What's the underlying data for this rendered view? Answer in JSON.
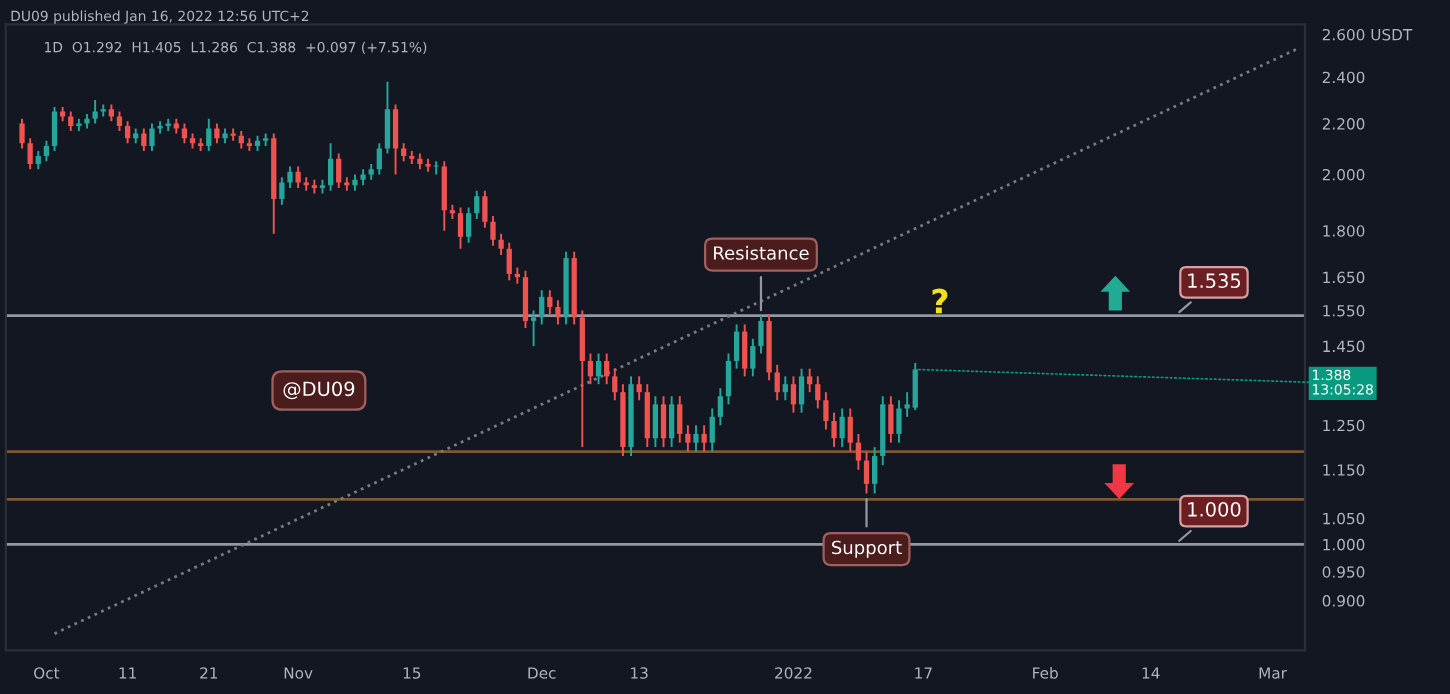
{
  "chart_data": {
    "type": "candlestick",
    "x": [
      "2021-09-28",
      "2021-09-29",
      "2021-09-30",
      "2021-10-01",
      "2021-10-02",
      "2021-10-03",
      "2021-10-04",
      "2021-10-05",
      "2021-10-06",
      "2021-10-07",
      "2021-10-08",
      "2021-10-09",
      "2021-10-10",
      "2021-10-11",
      "2021-10-12",
      "2021-10-13",
      "2021-10-14",
      "2021-10-15",
      "2021-10-16",
      "2021-10-17",
      "2021-10-18",
      "2021-10-19",
      "2021-10-20",
      "2021-10-21",
      "2021-10-22",
      "2021-10-23",
      "2021-10-24",
      "2021-10-25",
      "2021-10-26",
      "2021-10-27",
      "2021-10-28",
      "2021-10-29",
      "2021-10-30",
      "2021-10-31",
      "2021-11-01",
      "2021-11-02",
      "2021-11-03",
      "2021-11-04",
      "2021-11-05",
      "2021-11-06",
      "2021-11-07",
      "2021-11-08",
      "2021-11-09",
      "2021-11-10",
      "2021-11-11",
      "2021-11-12",
      "2021-11-13",
      "2021-11-14",
      "2021-11-15",
      "2021-11-16",
      "2021-11-17",
      "2021-11-18",
      "2021-11-19",
      "2021-11-20",
      "2021-11-21",
      "2021-11-22",
      "2021-11-23",
      "2021-11-24",
      "2021-11-25",
      "2021-11-26",
      "2021-11-27",
      "2021-11-28",
      "2021-11-29",
      "2021-11-30",
      "2021-12-01",
      "2021-12-02",
      "2021-12-03",
      "2021-12-04",
      "2021-12-05",
      "2021-12-06",
      "2021-12-07",
      "2021-12-08",
      "2021-12-09",
      "2021-12-10",
      "2021-12-11",
      "2021-12-12",
      "2021-12-13",
      "2021-12-14",
      "2021-12-15",
      "2021-12-16",
      "2021-12-17",
      "2021-12-18",
      "2021-12-19",
      "2021-12-20",
      "2021-12-21",
      "2021-12-22",
      "2021-12-23",
      "2021-12-24",
      "2021-12-25",
      "2021-12-26",
      "2021-12-27",
      "2021-12-28",
      "2021-12-29",
      "2021-12-30",
      "2021-12-31",
      "2022-01-01",
      "2022-01-02",
      "2022-01-03",
      "2022-01-04",
      "2022-01-05",
      "2022-01-06",
      "2022-01-07",
      "2022-01-08",
      "2022-01-09",
      "2022-01-10",
      "2022-01-11",
      "2022-01-12",
      "2022-01-13",
      "2022-01-14",
      "2022-01-15",
      "2022-01-16"
    ],
    "ohlc": [
      [
        2.2,
        2.22,
        2.1,
        2.12
      ],
      [
        2.12,
        2.14,
        2.02,
        2.04
      ],
      [
        2.04,
        2.09,
        2.02,
        2.07
      ],
      [
        2.07,
        2.13,
        2.05,
        2.11
      ],
      [
        2.11,
        2.27,
        2.09,
        2.25
      ],
      [
        2.25,
        2.27,
        2.21,
        2.23
      ],
      [
        2.23,
        2.25,
        2.17,
        2.19
      ],
      [
        2.19,
        2.22,
        2.17,
        2.2
      ],
      [
        2.2,
        2.24,
        2.18,
        2.22
      ],
      [
        2.22,
        2.3,
        2.2,
        2.25
      ],
      [
        2.25,
        2.28,
        2.23,
        2.26
      ],
      [
        2.26,
        2.28,
        2.21,
        2.23
      ],
      [
        2.23,
        2.25,
        2.17,
        2.19
      ],
      [
        2.19,
        2.21,
        2.12,
        2.14
      ],
      [
        2.14,
        2.18,
        2.12,
        2.16
      ],
      [
        2.16,
        2.18,
        2.09,
        2.11
      ],
      [
        2.11,
        2.2,
        2.09,
        2.18
      ],
      [
        2.18,
        2.21,
        2.16,
        2.19
      ],
      [
        2.19,
        2.22,
        2.17,
        2.2
      ],
      [
        2.2,
        2.22,
        2.16,
        2.18
      ],
      [
        2.18,
        2.2,
        2.12,
        2.14
      ],
      [
        2.14,
        2.16,
        2.1,
        2.12
      ],
      [
        2.12,
        2.14,
        2.09,
        2.11
      ],
      [
        2.11,
        2.22,
        2.09,
        2.18
      ],
      [
        2.18,
        2.2,
        2.12,
        2.14
      ],
      [
        2.14,
        2.18,
        2.12,
        2.16
      ],
      [
        2.16,
        2.18,
        2.13,
        2.15
      ],
      [
        2.15,
        2.17,
        2.1,
        2.12
      ],
      [
        2.12,
        2.14,
        2.09,
        2.11
      ],
      [
        2.11,
        2.15,
        2.09,
        2.13
      ],
      [
        2.13,
        2.16,
        2.11,
        2.14
      ],
      [
        2.14,
        2.16,
        1.79,
        1.91
      ],
      [
        1.91,
        1.99,
        1.89,
        1.97
      ],
      [
        1.97,
        2.03,
        1.95,
        2.01
      ],
      [
        2.01,
        2.03,
        1.95,
        1.97
      ],
      [
        1.97,
        1.99,
        1.94,
        1.96
      ],
      [
        1.96,
        1.98,
        1.93,
        1.95
      ],
      [
        1.95,
        1.98,
        1.93,
        1.96
      ],
      [
        1.96,
        2.12,
        1.94,
        2.06
      ],
      [
        2.06,
        2.08,
        1.95,
        1.97
      ],
      [
        1.97,
        1.99,
        1.94,
        1.96
      ],
      [
        1.96,
        2.0,
        1.94,
        1.98
      ],
      [
        1.98,
        2.02,
        1.96,
        2.0
      ],
      [
        2.0,
        2.04,
        1.98,
        2.02
      ],
      [
        2.02,
        2.12,
        2.0,
        2.1
      ],
      [
        2.1,
        2.38,
        2.08,
        2.26
      ],
      [
        2.26,
        2.28,
        2.0,
        2.1
      ],
      [
        2.1,
        2.12,
        2.05,
        2.07
      ],
      [
        2.07,
        2.09,
        2.04,
        2.06
      ],
      [
        2.06,
        2.08,
        2.02,
        2.04
      ],
      [
        2.04,
        2.06,
        2.01,
        2.03
      ],
      [
        2.03,
        2.05,
        2.0,
        2.03
      ],
      [
        2.03,
        2.05,
        1.8,
        1.87
      ],
      [
        1.87,
        1.89,
        1.84,
        1.86
      ],
      [
        1.86,
        1.88,
        1.74,
        1.78
      ],
      [
        1.78,
        1.88,
        1.76,
        1.86
      ],
      [
        1.86,
        1.94,
        1.84,
        1.92
      ],
      [
        1.92,
        1.94,
        1.81,
        1.83
      ],
      [
        1.83,
        1.85,
        1.75,
        1.77
      ],
      [
        1.77,
        1.79,
        1.72,
        1.74
      ],
      [
        1.74,
        1.76,
        1.64,
        1.66
      ],
      [
        1.66,
        1.68,
        1.63,
        1.65
      ],
      [
        1.65,
        1.67,
        1.5,
        1.52
      ],
      [
        1.52,
        1.55,
        1.45,
        1.53
      ],
      [
        1.53,
        1.61,
        1.51,
        1.59
      ],
      [
        1.59,
        1.61,
        1.54,
        1.56
      ],
      [
        1.56,
        1.58,
        1.51,
        1.53
      ],
      [
        1.53,
        1.73,
        1.51,
        1.71
      ],
      [
        1.71,
        1.73,
        1.51,
        1.53
      ],
      [
        1.53,
        1.55,
        1.2,
        1.41
      ],
      [
        1.41,
        1.43,
        1.35,
        1.37
      ],
      [
        1.37,
        1.43,
        1.35,
        1.41
      ],
      [
        1.41,
        1.43,
        1.35,
        1.37
      ],
      [
        1.37,
        1.39,
        1.31,
        1.33
      ],
      [
        1.33,
        1.35,
        1.18,
        1.2
      ],
      [
        1.2,
        1.37,
        1.18,
        1.35
      ],
      [
        1.35,
        1.37,
        1.31,
        1.33
      ],
      [
        1.33,
        1.35,
        1.2,
        1.22
      ],
      [
        1.22,
        1.32,
        1.2,
        1.3
      ],
      [
        1.3,
        1.32,
        1.2,
        1.22
      ],
      [
        1.22,
        1.32,
        1.2,
        1.3
      ],
      [
        1.3,
        1.32,
        1.21,
        1.23
      ],
      [
        1.23,
        1.25,
        1.19,
        1.21
      ],
      [
        1.21,
        1.25,
        1.19,
        1.23
      ],
      [
        1.23,
        1.25,
        1.19,
        1.21
      ],
      [
        1.21,
        1.29,
        1.19,
        1.27
      ],
      [
        1.27,
        1.34,
        1.25,
        1.32
      ],
      [
        1.32,
        1.43,
        1.3,
        1.41
      ],
      [
        1.41,
        1.51,
        1.39,
        1.49
      ],
      [
        1.49,
        1.51,
        1.37,
        1.39
      ],
      [
        1.39,
        1.47,
        1.37,
        1.45
      ],
      [
        1.45,
        1.535,
        1.43,
        1.52
      ],
      [
        1.52,
        1.54,
        1.36,
        1.38
      ],
      [
        1.38,
        1.4,
        1.31,
        1.33
      ],
      [
        1.33,
        1.37,
        1.31,
        1.35
      ],
      [
        1.35,
        1.37,
        1.28,
        1.3
      ],
      [
        1.3,
        1.39,
        1.28,
        1.37
      ],
      [
        1.37,
        1.39,
        1.33,
        1.35
      ],
      [
        1.35,
        1.37,
        1.29,
        1.31
      ],
      [
        1.31,
        1.33,
        1.24,
        1.26
      ],
      [
        1.26,
        1.28,
        1.2,
        1.22
      ],
      [
        1.22,
        1.29,
        1.2,
        1.27
      ],
      [
        1.27,
        1.29,
        1.19,
        1.21
      ],
      [
        1.21,
        1.23,
        1.15,
        1.17
      ],
      [
        1.17,
        1.19,
        1.1,
        1.12
      ],
      [
        1.12,
        1.2,
        1.1,
        1.18
      ],
      [
        1.18,
        1.32,
        1.16,
        1.3
      ],
      [
        1.3,
        1.32,
        1.21,
        1.23
      ],
      [
        1.23,
        1.31,
        1.21,
        1.29
      ],
      [
        1.29,
        1.33,
        1.27,
        1.3
      ],
      [
        1.292,
        1.405,
        1.286,
        1.388
      ]
    ],
    "series": [
      {
        "type": "line",
        "x": [
          "2021-10-02",
          "2022-03-04"
        ],
        "values": [
          0.846,
          2.53
        ],
        "color": "#787b86",
        "line_style": "dotted"
      }
    ],
    "ref_lines": [
      {
        "axis": "y",
        "value": 1.535,
        "label": "1.535",
        "color": "#9598a1"
      },
      {
        "axis": "y",
        "value": 1.19,
        "color": "#7a5a36"
      },
      {
        "axis": "y",
        "value": 1.088,
        "color": "#7a5a36"
      },
      {
        "axis": "y",
        "value": 1.0,
        "label": "1.000",
        "color": "#9598a1"
      }
    ],
    "annotations": [
      "DU09 published Jan 16, 2022 12:56 UTC+2",
      "1D  O1.292  H1.405  L1.286  C1.388  +0.097 (+7.51%)",
      "@DU09",
      "?",
      {
        "text": "Resistance",
        "x": "2021-12-28",
        "y": 1.535
      },
      {
        "text": "Support",
        "x": "2022-01-10",
        "y": 1.1
      },
      {
        "text": "1.388\n13:05:28",
        "x": "2022-01-16",
        "y": 1.388
      }
    ],
    "log": true,
    "ylim": [
      0.82,
      2.65
    ],
    "yticks": [
      {
        "value": 2.6,
        "label": "2.600 USDT"
      },
      {
        "value": 2.4,
        "label": "2.400"
      },
      {
        "value": 2.2,
        "label": "2.200"
      },
      {
        "value": 2.0,
        "label": "2.000"
      },
      {
        "value": 1.8,
        "label": "1.800"
      },
      {
        "value": 1.65,
        "label": "1.650"
      },
      {
        "value": 1.55,
        "label": "1.550"
      },
      {
        "value": 1.45,
        "label": "1.450"
      },
      {
        "value": 1.25,
        "label": "1.250"
      },
      {
        "value": 1.15,
        "label": "1.150"
      },
      {
        "value": 1.05,
        "label": "1.050"
      },
      {
        "value": 1.0,
        "label": "1.000"
      },
      {
        "value": 0.95,
        "label": "0.950"
      },
      {
        "value": 0.9,
        "label": "0.900"
      }
    ],
    "xlim": [
      "2021-09-26",
      "2022-03-05"
    ],
    "xticks": [
      {
        "value": "2021-10-01",
        "label": "Oct"
      },
      {
        "value": "2021-10-11",
        "label": "11"
      },
      {
        "value": "2021-10-21",
        "label": "21"
      },
      {
        "value": "2021-11-01",
        "label": "Nov"
      },
      {
        "value": "2021-11-15",
        "label": "15"
      },
      {
        "value": "2021-12-01",
        "label": "Dec"
      },
      {
        "value": "2021-12-13",
        "label": "13"
      },
      {
        "value": "2022-01-01",
        "label": "2022"
      },
      {
        "value": "2022-01-17",
        "label": "17"
      },
      {
        "value": "2022-02-01",
        "label": "Feb"
      },
      {
        "value": "2022-02-14",
        "label": "14"
      },
      {
        "value": "2022-03-01",
        "label": "Mar"
      }
    ]
  }
}
